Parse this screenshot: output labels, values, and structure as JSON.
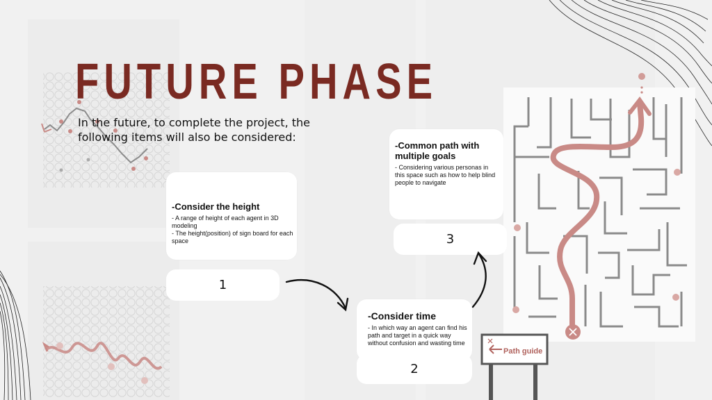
{
  "title": "FUTURE PHASE",
  "intro": "In the future, to complete the project, the following items will also be considered:",
  "cards": [
    {
      "title": "-Consider the height",
      "lines": [
        "- A range of height of  each agent in 3D modeling",
        "- The height(position) of sign board for each space"
      ],
      "number": "1"
    },
    {
      "title": "-Consider time",
      "lines": [
        "- In which way an agent can find his path and target in a quick way without confusion and wasting time"
      ],
      "number": "2"
    },
    {
      "title": "-Common path with multiple goals",
      "lines": [
        "- Considering various personas in this space such as how to help blind people to navigate"
      ],
      "number": "3"
    }
  ],
  "sign": {
    "label": "Path guide"
  },
  "colors": {
    "accent": "#7a2a22",
    "path": "#c98a86",
    "maze": "#8a8a8a"
  }
}
